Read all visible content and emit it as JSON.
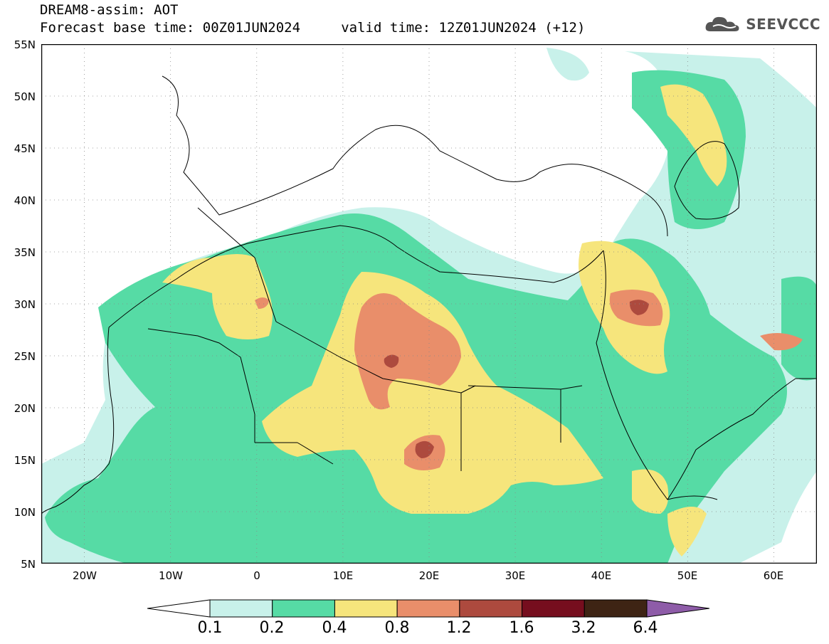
{
  "header": {
    "line1": "DREAM8-assim: AOT",
    "line2": "Forecast base time: 00Z01JUN2024     valid time: 12Z01JUN2024 (+12)"
  },
  "logo": {
    "text": "SEEVCCC",
    "icon": "cloud-icon"
  },
  "map": {
    "lat_labels": [
      "55N",
      "50N",
      "45N",
      "40N",
      "35N",
      "30N",
      "25N",
      "20N",
      "15N",
      "10N",
      "5N"
    ],
    "lon_labels": [
      "20W",
      "10W",
      "0",
      "10E",
      "20E",
      "30E",
      "40E",
      "50E",
      "60E"
    ]
  },
  "legend": {
    "colors": [
      "#c8f1ea",
      "#56dba5",
      "#f6e57c",
      "#e98e6a",
      "#ad4a3e",
      "#760e1e",
      "#3e2414",
      "#8e5ca8"
    ],
    "labels": [
      "0.1",
      "0.2",
      "0.4",
      "0.8",
      "1.2",
      "1.6",
      "3.2",
      "6.4"
    ]
  }
}
